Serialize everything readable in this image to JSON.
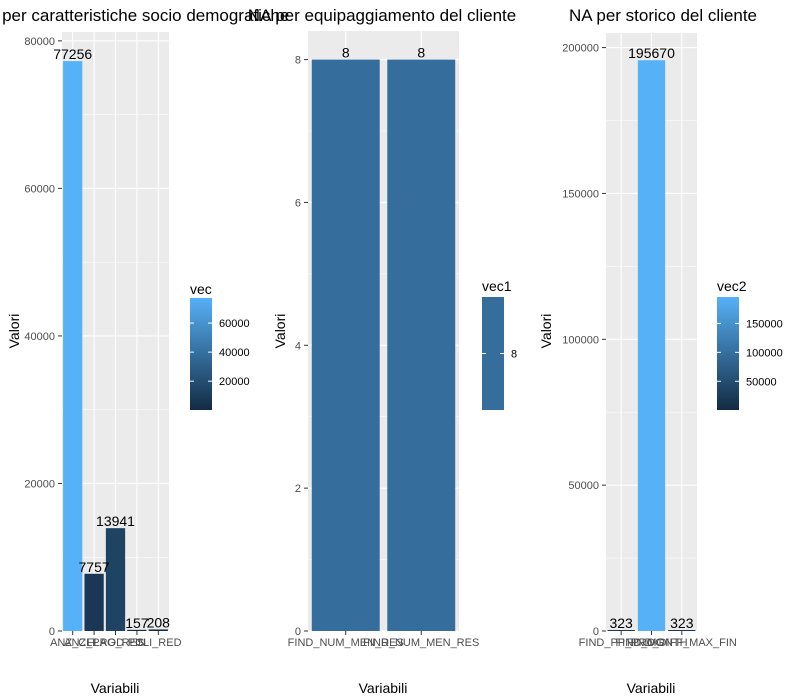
{
  "chart_data": [
    {
      "type": "bar",
      "title": "NA per caratteristiche socio demografiche",
      "xlabel": "Variabili",
      "ylabel": "Valori",
      "categories": [
        "ANZ_CLI",
        "ANZ_PROD",
        "FLAG_RES",
        "PIN",
        "CLI_RED"
      ],
      "values": [
        77256,
        7757,
        13941,
        157,
        208
      ],
      "data_labels": [
        "77256",
        "7757",
        "13941",
        "157",
        "208"
      ],
      "yticks": [
        0,
        20000,
        40000,
        60000,
        80000
      ],
      "ylim": [
        0,
        81200
      ],
      "legend": {
        "title": "vec",
        "ticks": [
          20000,
          40000,
          60000
        ],
        "min": 157,
        "max": 77256,
        "placement": "right"
      },
      "grid": true
    },
    {
      "type": "bar",
      "title": "NA per equipaggiamento del cliente",
      "xlabel": "Variabili",
      "ylabel": "Valori",
      "categories": [
        "FIND_NUM_MEN_RES",
        "FIND_NUM_MEN_RES"
      ],
      "values": [
        8,
        8
      ],
      "data_labels": [
        "8",
        "8"
      ],
      "yticks": [
        0,
        2,
        4,
        6,
        8
      ],
      "ylim": [
        0,
        8.4
      ],
      "legend": {
        "title": "vec1",
        "ticks": [
          8
        ],
        "min": 8,
        "max": 8,
        "placement": "right"
      },
      "grid": true
    },
    {
      "type": "bar",
      "title": "NA per storico del cliente",
      "xlabel": "Variabili",
      "ylabel": "Valori",
      "categories": [
        "FIND_PP_PROG",
        "FIND_MONTH",
        "FIND_DIFF_MAX_FIN"
      ],
      "values": [
        323,
        195670,
        323
      ],
      "data_labels": [
        "323",
        "195670",
        "323"
      ],
      "yticks": [
        0,
        50000,
        100000,
        150000,
        200000
      ],
      "ylim": [
        0,
        205000
      ],
      "legend": {
        "title": "vec2",
        "ticks": [
          50000,
          100000,
          150000
        ],
        "min": 323,
        "max": 195670,
        "placement": "right"
      },
      "grid": true
    }
  ],
  "colors": {
    "panel_bg": "#ebebeb",
    "grid": "#ffffff",
    "low": "#132b43",
    "high": "#56b1f7"
  }
}
